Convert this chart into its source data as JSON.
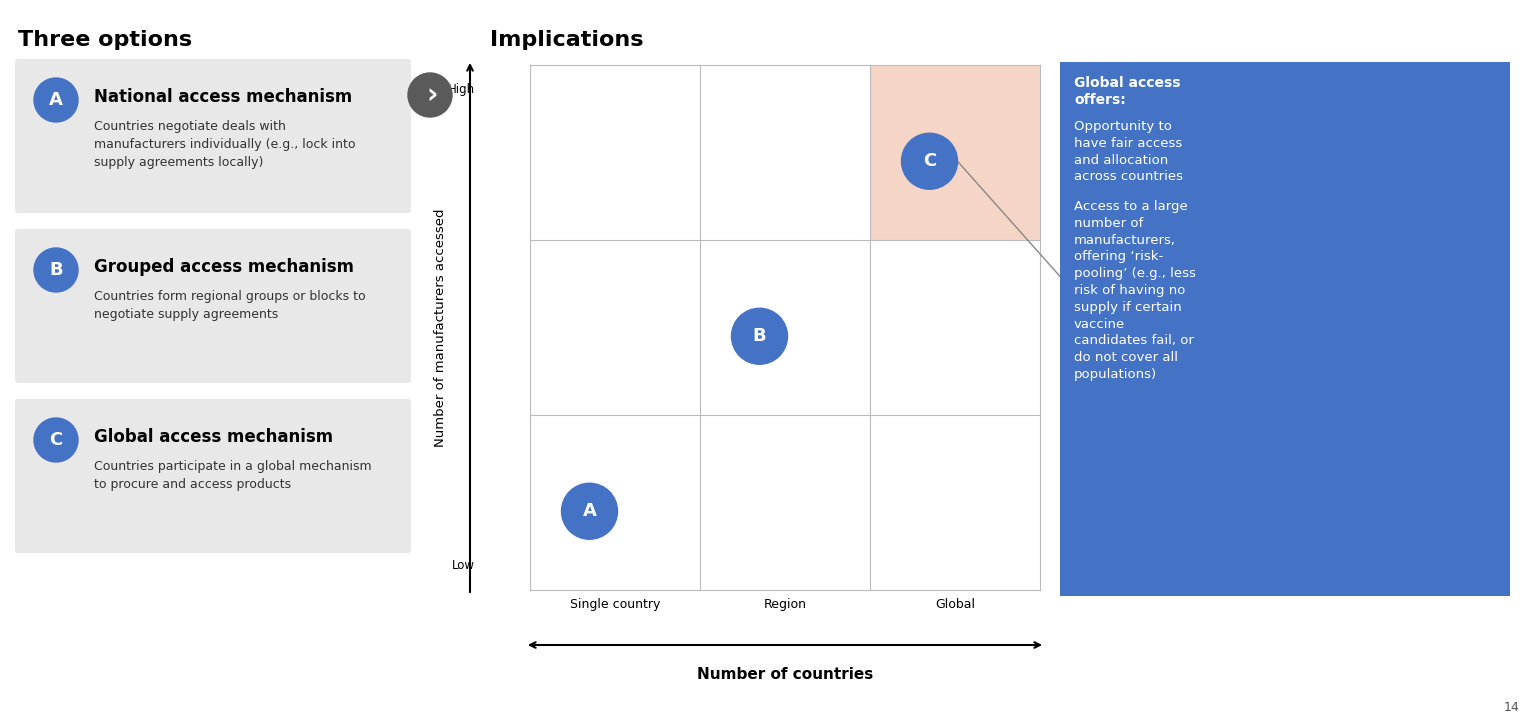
{
  "left_title": "Three options",
  "right_title": "Implications",
  "options": [
    {
      "letter": "A",
      "title": "National access mechanism",
      "desc": "Countries negotiate deals with\nmanufacturers individually (e.g., lock into\nsupply agreements locally)"
    },
    {
      "letter": "B",
      "title": "Grouped access mechanism",
      "desc": "Countries form regional groups or blocks to\nnegotiate supply agreements"
    },
    {
      "letter": "C",
      "title": "Global access mechanism",
      "desc": "Countries participate in a global mechanism\nto procure and access products"
    }
  ],
  "circle_color": "#4472C4",
  "circle_text_color": "#FFFFFF",
  "box_bg_color": "#E8E8E8",
  "arrow_circle_color": "#5A5A5A",
  "grid_line_color": "#BBBBBB",
  "highlight_color": "#F5D5C5",
  "blue_box_color": "#4472C4",
  "x_labels": [
    "Single country",
    "Region",
    "Global"
  ],
  "y_label": "Number of manufacturers accessed",
  "x_axis_label": "Number of countries",
  "y_high": "High",
  "y_low": "Low",
  "blue_title": "Global access\noffers:",
  "blue_para1": "Opportunity to\nhave fair access\nand allocation\nacross countries",
  "blue_para2": "Access to a large\nnumber of\nmanufacturers,\noffering ‘risk-\npooling’ (e.g., less\nrisk of having no\nsupply if certain\nvaccine\ncandidates fail, or\ndo not cover all\npopulations)",
  "page_number": "14"
}
